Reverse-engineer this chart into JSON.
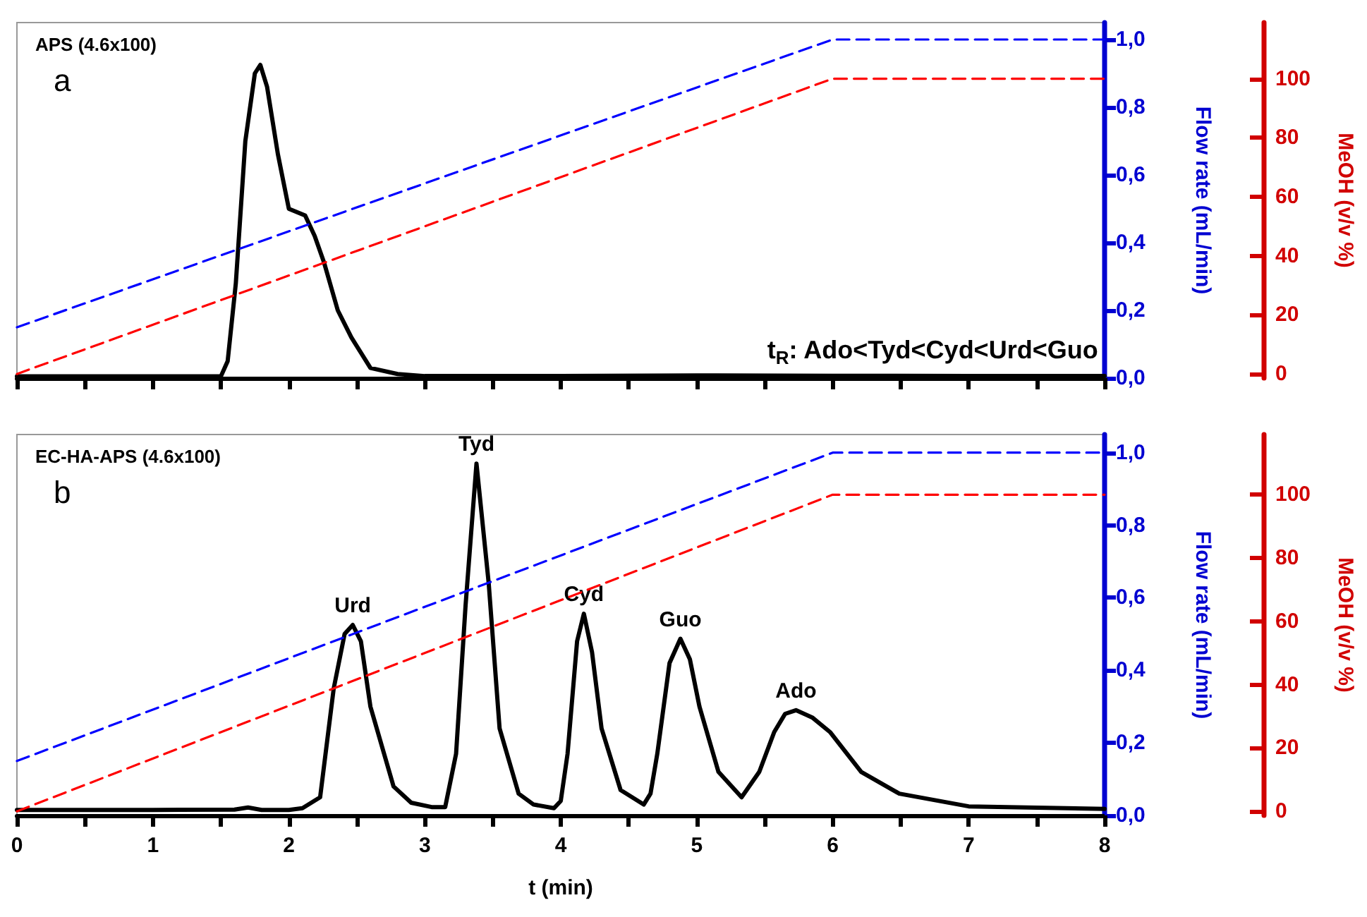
{
  "chart_data": [
    {
      "type": "line",
      "title": "APS (4.6x100)",
      "ylabel": "Flow rate (mL/min)",
      "y2label": "MeOH (v/v %)",
      "annotations": [
        "a",
        "t$_{R}$: Ado<Tyd<Cyd<Urd<Guo"
      ],
      "xlim": [
        0,
        8
      ],
      "xticks": [
        0,
        {
          "value": 0.5,
          "label": null
        },
        1,
        {
          "value": 1.5,
          "label": null
        },
        2,
        {
          "value": 2.5,
          "label": null
        },
        3,
        {
          "value": 3.5,
          "label": null
        },
        4,
        {
          "value": 4.5,
          "label": null
        },
        5,
        {
          "value": 5.5,
          "label": null
        },
        6,
        {
          "value": 6.5,
          "label": null
        },
        7,
        {
          "value": 7.5,
          "label": null
        },
        8
      ],
      "ylim": [
        0,
        1.05
      ],
      "yticks": [
        {
          "value": 0,
          "label": "0,0"
        },
        {
          "value": 0.2,
          "label": "0,2"
        },
        {
          "value": 0.4,
          "label": "0,4"
        },
        {
          "value": 0.6,
          "label": "0,6"
        },
        {
          "value": 0.8,
          "label": "0,8"
        },
        {
          "value": 1,
          "label": "1,0"
        }
      ],
      "y2lim": [
        -1.4,
        119
      ],
      "y2ticks": [
        0,
        20,
        40,
        60,
        80,
        100
      ],
      "tick_labels": "y",
      "series": [
        {
          "color": "#000000",
          "line_style": "solid",
          "axis": "y",
          "x": [
            0,
            1.5,
            1.55,
            1.61,
            1.68,
            1.75,
            1.79,
            1.84,
            1.92,
            2.0,
            2.06,
            2.12,
            2.19,
            2.26,
            2.36,
            2.46,
            2.6,
            2.8,
            3.0,
            4.0,
            5.0,
            6.0,
            7.0,
            8.0
          ],
          "values": [
            0.005,
            0.005,
            0.05,
            0.28,
            0.7,
            0.9,
            0.925,
            0.86,
            0.66,
            0.5,
            0.49,
            0.48,
            0.42,
            0.34,
            0.2,
            0.12,
            0.03,
            0.012,
            0.006,
            0.006,
            0.008,
            0.007,
            0.006,
            0.006
          ]
        },
        {
          "color": "#0000ff",
          "line_style": "dashed",
          "axis": "y",
          "x": [
            0,
            6,
            8
          ],
          "values": [
            0.15,
            1.0,
            1.0
          ]
        },
        {
          "color": "#ff0000",
          "line_style": "dashed",
          "axis": "y2",
          "x": [
            0,
            6,
            8
          ],
          "values": [
            0,
            100,
            100
          ]
        }
      ]
    },
    {
      "type": "line",
      "title": "EC-HA-APS (4.6x100)",
      "xlabel": "t (min)",
      "ylabel": "Flow rate (mL/min)",
      "y2label": "MeOH (v/v %)",
      "annotations": [
        "b",
        {
          "text": "Urd",
          "x": 2.47,
          "y": 0.525
        },
        {
          "text": "Tyd",
          "x": 3.38,
          "y": 0.97
        },
        {
          "text": "Cyd",
          "x": 4.17,
          "y": 0.556
        },
        {
          "text": "Guo",
          "x": 4.88,
          "y": 0.487
        },
        {
          "text": "Ado",
          "x": 5.73,
          "y": 0.29
        }
      ],
      "xlim": [
        0,
        8
      ],
      "xticks": [
        0,
        {
          "value": 0.5,
          "label": null
        },
        1,
        {
          "value": 1.5,
          "label": null
        },
        2,
        {
          "value": 2.5,
          "label": null
        },
        3,
        {
          "value": 3.5,
          "label": null
        },
        4,
        {
          "value": 4.5,
          "label": null
        },
        5,
        {
          "value": 5.5,
          "label": null
        },
        6,
        {
          "value": 6.5,
          "label": null
        },
        7,
        {
          "value": 7.5,
          "label": null
        },
        8
      ],
      "ylim": [
        0,
        1.05
      ],
      "yticks": [
        {
          "value": 0,
          "label": "0,0"
        },
        {
          "value": 0.2,
          "label": "0,2"
        },
        {
          "value": 0.4,
          "label": "0,4"
        },
        {
          "value": 0.6,
          "label": "0,6"
        },
        {
          "value": 0.8,
          "label": "0,8"
        },
        {
          "value": 1,
          "label": "1,0"
        }
      ],
      "y2lim": [
        -1.3,
        119
      ],
      "y2ticks": [
        0,
        20,
        40,
        60,
        80,
        100
      ],
      "series": [
        {
          "color": "#000000",
          "line_style": "solid",
          "axis": "y",
          "x": [
            0,
            1.0,
            1.6,
            1.7,
            1.8,
            2.0,
            2.1,
            2.23,
            2.33,
            2.41,
            2.47,
            2.53,
            2.6,
            2.77,
            2.9,
            3.05,
            3.15,
            3.23,
            3.3,
            3.38,
            3.47,
            3.55,
            3.69,
            3.8,
            3.95,
            4.0,
            4.05,
            4.12,
            4.17,
            4.23,
            4.3,
            4.44,
            4.61,
            4.66,
            4.71,
            4.8,
            4.88,
            4.95,
            5.02,
            5.16,
            5.33,
            5.46,
            5.57,
            5.65,
            5.73,
            5.85,
            5.98,
            6.21,
            6.49,
            7.0,
            8.0
          ],
          "values": [
            0.015,
            0.015,
            0.016,
            0.022,
            0.015,
            0.015,
            0.02,
            0.05,
            0.35,
            0.5,
            0.525,
            0.48,
            0.3,
            0.08,
            0.035,
            0.023,
            0.023,
            0.17,
            0.58,
            0.97,
            0.64,
            0.24,
            0.06,
            0.03,
            0.02,
            0.04,
            0.17,
            0.48,
            0.556,
            0.45,
            0.24,
            0.07,
            0.03,
            0.06,
            0.17,
            0.42,
            0.487,
            0.43,
            0.3,
            0.12,
            0.05,
            0.12,
            0.23,
            0.28,
            0.29,
            0.27,
            0.23,
            0.12,
            0.06,
            0.025,
            0.018
          ]
        },
        {
          "color": "#0000ff",
          "line_style": "dashed",
          "axis": "y",
          "x": [
            0,
            6,
            8
          ],
          "values": [
            0.15,
            1.0,
            1.0
          ]
        },
        {
          "color": "#ff0000",
          "line_style": "dashed",
          "axis": "y2",
          "x": [
            0,
            6,
            8
          ],
          "values": [
            0,
            100,
            100
          ]
        }
      ]
    }
  ]
}
